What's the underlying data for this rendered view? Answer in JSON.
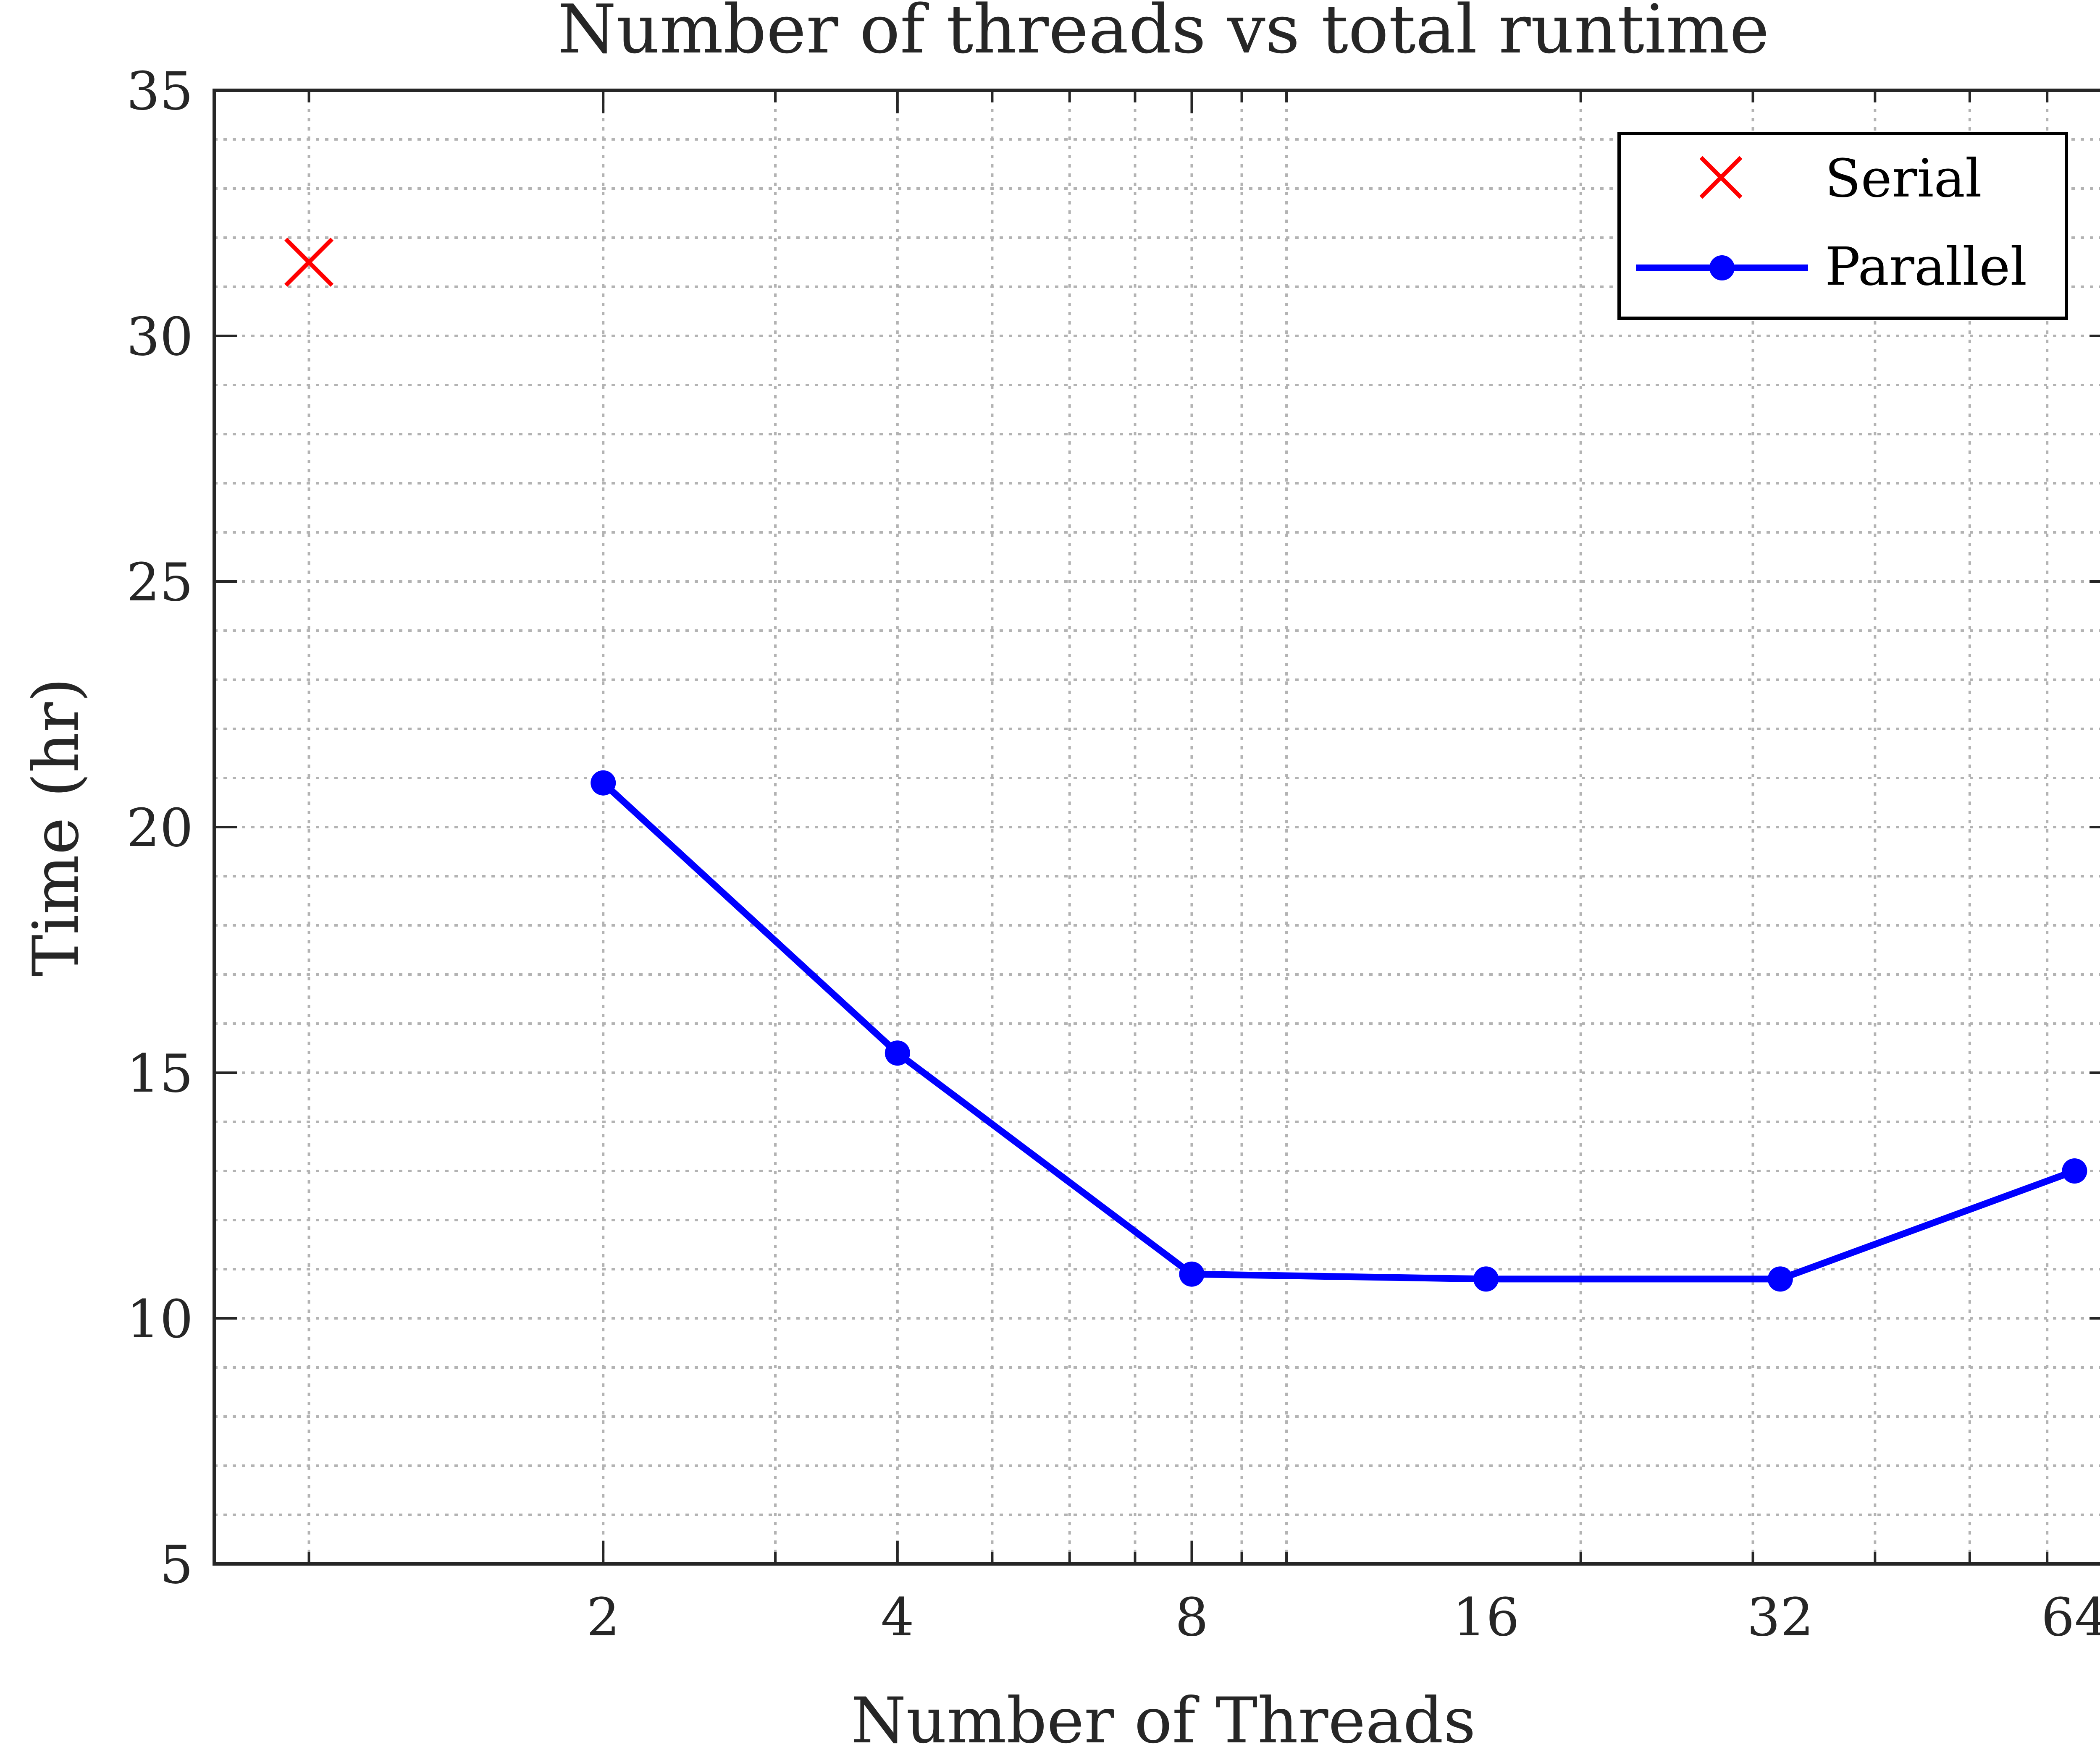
{
  "chart_data": {
    "type": "line",
    "title": "Number of threads vs total runtime",
    "xlabel": "Number of Threads",
    "ylabel": "Time (hr)",
    "x_scale": "log2",
    "xlim": [
      0.8,
      70
    ],
    "ylim": [
      5,
      35
    ],
    "xticks": [
      2,
      4,
      8,
      16,
      32,
      64
    ],
    "xtick_labels": [
      "2",
      "4",
      "8",
      "16",
      "32",
      "64"
    ],
    "yticks": [
      5,
      10,
      15,
      20,
      25,
      30,
      35
    ],
    "ytick_labels": [
      "5",
      "10",
      "15",
      "20",
      "25",
      "30",
      "35"
    ],
    "grid": "major and minor, dotted",
    "legend": "top-right",
    "series": [
      {
        "name": "Serial",
        "marker": "x",
        "line": "none",
        "color": "#ff0000",
        "x": [
          1
        ],
        "y": [
          31.5
        ]
      },
      {
        "name": "Parallel",
        "marker": "filled-circle",
        "line": "solid",
        "color": "#0000ff",
        "x": [
          2,
          4,
          8,
          16,
          32,
          64
        ],
        "y": [
          20.9,
          15.4,
          10.9,
          10.8,
          10.8,
          13.0
        ]
      }
    ]
  }
}
